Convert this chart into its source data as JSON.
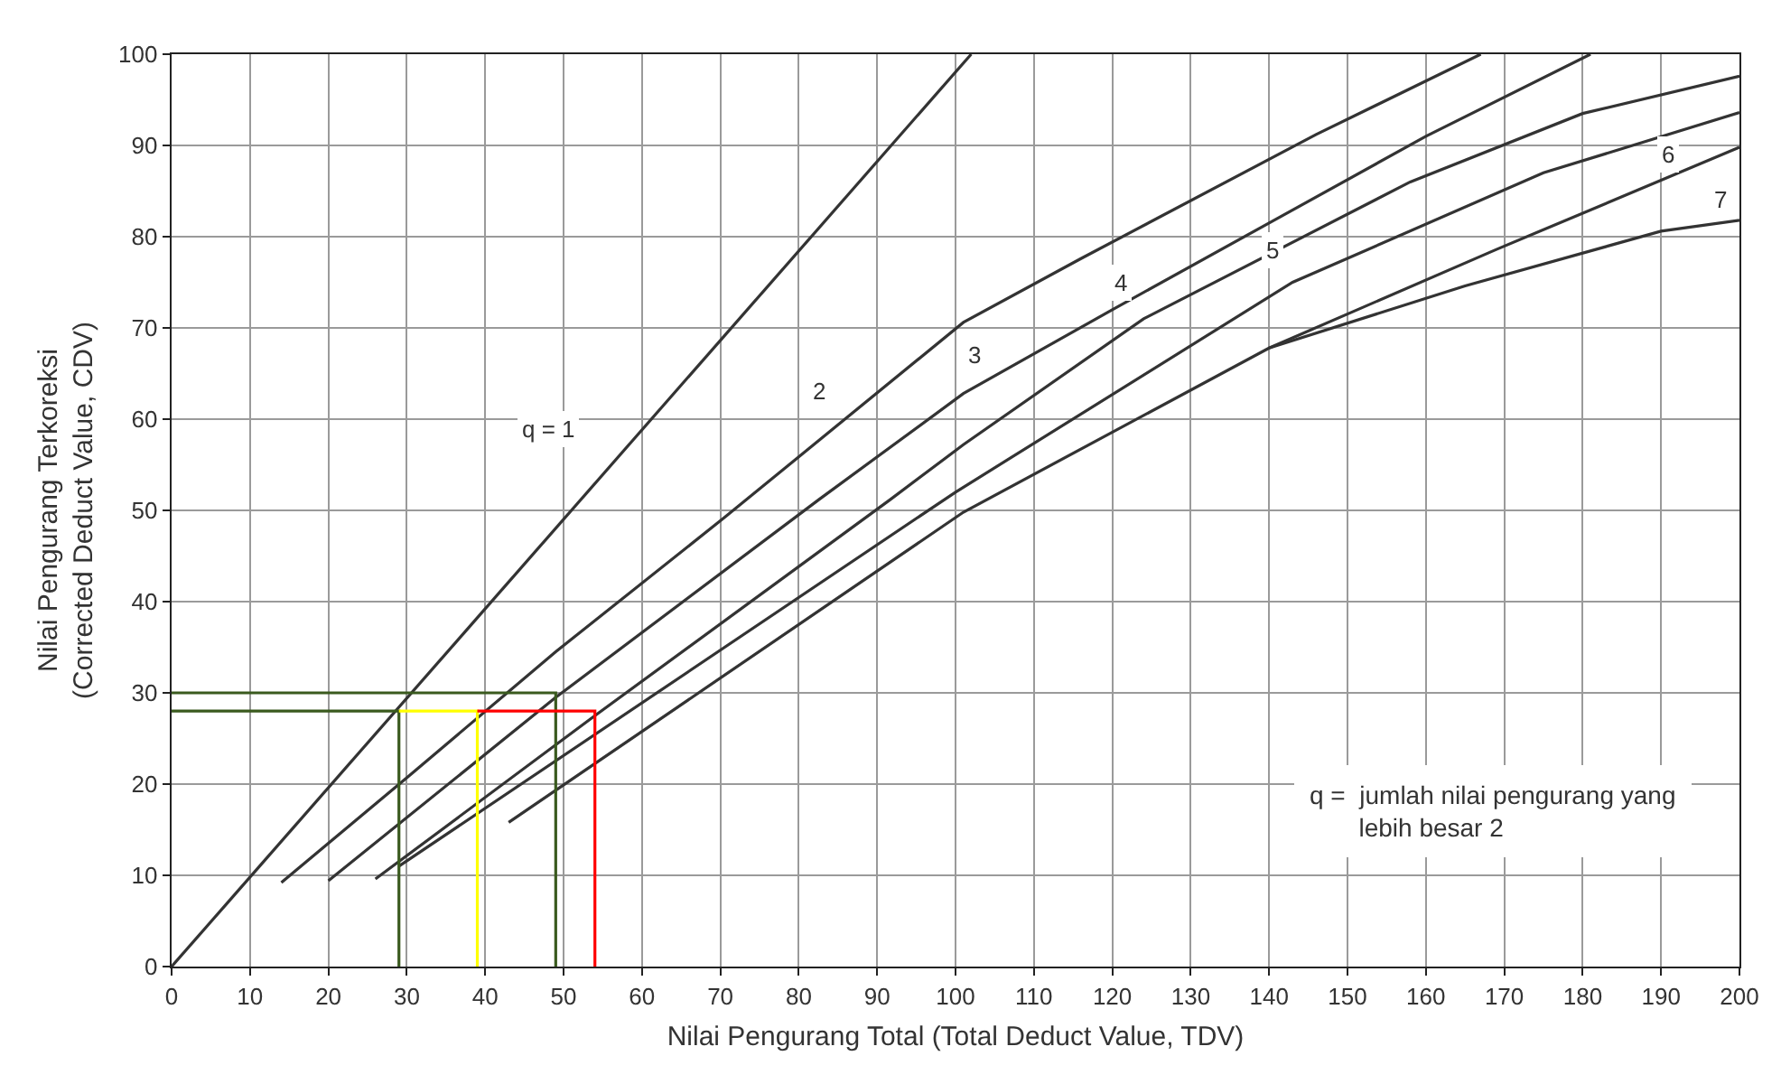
{
  "chart_data": {
    "type": "line",
    "xlabel": "Nilai Pengurang Total (Total Deduct Value, TDV)",
    "ylabel": "Nilai Pengurang Terkoreksi\n(Corrected Deduct Value, CDV)",
    "xlim": [
      0,
      200
    ],
    "ylim": [
      0,
      100
    ],
    "xticks": [
      0,
      10,
      20,
      30,
      40,
      50,
      60,
      70,
      80,
      90,
      100,
      110,
      120,
      130,
      140,
      150,
      160,
      170,
      180,
      190,
      200
    ],
    "yticks": [
      0,
      10,
      20,
      30,
      40,
      50,
      60,
      70,
      80,
      90,
      100
    ],
    "grid": true,
    "marker": "none",
    "line_style": "solid",
    "series": [
      {
        "color": "#333333",
        "x": [
          0,
          102
        ],
        "values": [
          0,
          100
        ]
      },
      {
        "color": "#333333",
        "x": [
          14,
          30,
          49,
          70.5,
          101,
          116,
          146,
          167
        ],
        "values": [
          9.2,
          20.7,
          34.5,
          49.2,
          70.6,
          77.6,
          91.2,
          100
        ]
      },
      {
        "color": "#333333",
        "x": [
          20,
          49,
          82.6,
          101,
          120,
          140,
          160,
          181
        ],
        "values": [
          9.4,
          29.5,
          51.2,
          62.8,
          72,
          81.5,
          91,
          100
        ]
      },
      {
        "color": "#333333",
        "x": [
          26,
          54,
          91.7,
          101,
          124,
          158,
          180,
          200
        ],
        "values": [
          9.6,
          27.5,
          51.2,
          57.2,
          71,
          86,
          93.5,
          97.6
        ]
      },
      {
        "color": "#333333",
        "x": [
          29,
          100,
          143,
          175,
          200
        ],
        "values": [
          11,
          52,
          75,
          87,
          93.6
        ]
      },
      {
        "color": "#333333",
        "x": [
          43,
          101,
          140,
          169,
          200
        ],
        "values": [
          15.8,
          49.8,
          67.8,
          78.6,
          89.8
        ]
      },
      {
        "color": "#333333",
        "x": [
          140,
          165,
          190,
          200
        ],
        "values": [
          67.8,
          74.6,
          80.6,
          81.8
        ]
      },
      {
        "color": "#3a5a1e",
        "x": [
          0,
          49,
          49
        ],
        "values": [
          30,
          30,
          0
        ]
      },
      {
        "color": "#3a5a1e",
        "x": [
          0,
          29,
          29
        ],
        "values": [
          28,
          28,
          0
        ]
      },
      {
        "color": "#ffff00",
        "x": [
          29,
          39,
          39
        ],
        "values": [
          28,
          28,
          0
        ]
      },
      {
        "color": "#ff0000",
        "x": [
          39,
          54,
          54
        ],
        "values": [
          28,
          28,
          0
        ]
      }
    ],
    "annotations": [
      {
        "text": "q = 1",
        "x": 48,
        "y": 59
      },
      {
        "text": "2",
        "x": 82.5,
        "y": 63
      },
      {
        "text": "3",
        "x": 102.5,
        "y": 67
      },
      {
        "text": "4",
        "x": 121,
        "y": 75
      },
      {
        "text": "5",
        "x": 140.5,
        "y": 78.5
      },
      {
        "text": "6",
        "x": 191,
        "y": 89
      },
      {
        "text": "7",
        "x": 197.5,
        "y": 84
      },
      "q =  jumlah nilai pengurang yang\n       lebih besar 2"
    ]
  }
}
